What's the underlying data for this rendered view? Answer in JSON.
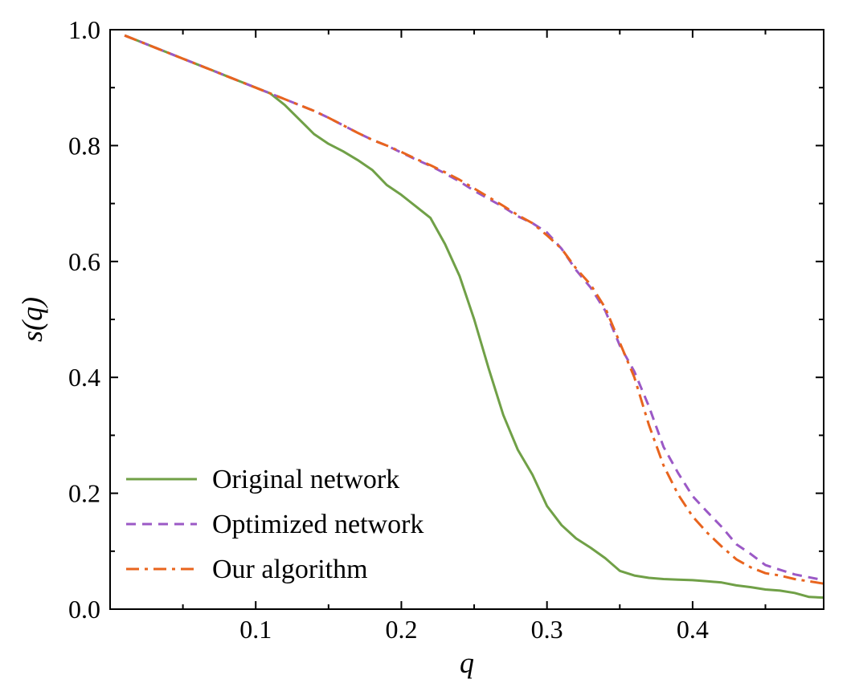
{
  "chart_data": {
    "type": "line",
    "xlabel": "q",
    "ylabel": "s(q)",
    "xlim": [
      0.0,
      0.49
    ],
    "ylim": [
      0.0,
      1.0
    ],
    "xticks": [
      0.1,
      0.2,
      0.3,
      0.4
    ],
    "xtick_labels": [
      "0.1",
      "0.2",
      "0.3",
      "0.4"
    ],
    "yticks": [
      0.0,
      0.2,
      0.4,
      0.6,
      0.8,
      1.0
    ],
    "ytick_labels": [
      "0.0",
      "0.2",
      "0.4",
      "0.6",
      "0.8",
      "1.0"
    ],
    "legend_position": "bottom-left",
    "grid": false,
    "series": [
      {
        "name": "Original network",
        "color": "#70a047",
        "style": "solid",
        "x": [
          0.01,
          0.02,
          0.03,
          0.04,
          0.05,
          0.06,
          0.07,
          0.08,
          0.09,
          0.1,
          0.11,
          0.12,
          0.13,
          0.14,
          0.15,
          0.16,
          0.17,
          0.18,
          0.19,
          0.2,
          0.21,
          0.22,
          0.23,
          0.24,
          0.25,
          0.26,
          0.27,
          0.28,
          0.29,
          0.3,
          0.31,
          0.32,
          0.33,
          0.34,
          0.35,
          0.36,
          0.37,
          0.38,
          0.39,
          0.4,
          0.41,
          0.42,
          0.43,
          0.44,
          0.45,
          0.46,
          0.47,
          0.48,
          0.49
        ],
        "y": [
          0.99,
          0.98,
          0.97,
          0.96,
          0.95,
          0.94,
          0.93,
          0.92,
          0.91,
          0.9,
          0.89,
          0.87,
          0.845,
          0.82,
          0.803,
          0.79,
          0.775,
          0.758,
          0.732,
          0.715,
          0.695,
          0.675,
          0.63,
          0.575,
          0.5,
          0.415,
          0.335,
          0.275,
          0.232,
          0.178,
          0.145,
          0.122,
          0.106,
          0.088,
          0.066,
          0.058,
          0.054,
          0.052,
          0.051,
          0.05,
          0.048,
          0.046,
          0.041,
          0.038,
          0.034,
          0.032,
          0.028,
          0.021,
          0.02
        ]
      },
      {
        "name": "Optimized network",
        "color": "#9b59c6",
        "style": "dashed",
        "x": [
          0.01,
          0.02,
          0.03,
          0.04,
          0.05,
          0.06,
          0.07,
          0.08,
          0.09,
          0.1,
          0.11,
          0.12,
          0.13,
          0.14,
          0.15,
          0.16,
          0.17,
          0.18,
          0.19,
          0.2,
          0.21,
          0.22,
          0.23,
          0.24,
          0.25,
          0.26,
          0.27,
          0.28,
          0.29,
          0.3,
          0.31,
          0.32,
          0.33,
          0.34,
          0.35,
          0.36,
          0.37,
          0.38,
          0.39,
          0.4,
          0.41,
          0.42,
          0.43,
          0.44,
          0.45,
          0.46,
          0.47,
          0.48,
          0.49
        ],
        "y": [
          0.99,
          0.98,
          0.97,
          0.96,
          0.95,
          0.94,
          0.93,
          0.92,
          0.91,
          0.9,
          0.89,
          0.88,
          0.87,
          0.86,
          0.848,
          0.835,
          0.822,
          0.81,
          0.8,
          0.788,
          0.776,
          0.765,
          0.752,
          0.738,
          0.722,
          0.708,
          0.694,
          0.678,
          0.666,
          0.65,
          0.622,
          0.585,
          0.555,
          0.515,
          0.455,
          0.41,
          0.35,
          0.28,
          0.235,
          0.195,
          0.168,
          0.142,
          0.112,
          0.095,
          0.076,
          0.068,
          0.06,
          0.055,
          0.05
        ]
      },
      {
        "name": "Our algorithm",
        "color": "#e8641e",
        "style": "dashdot",
        "x": [
          0.01,
          0.02,
          0.03,
          0.04,
          0.05,
          0.06,
          0.07,
          0.08,
          0.09,
          0.1,
          0.11,
          0.12,
          0.13,
          0.14,
          0.15,
          0.16,
          0.17,
          0.18,
          0.19,
          0.2,
          0.21,
          0.22,
          0.23,
          0.24,
          0.25,
          0.26,
          0.27,
          0.28,
          0.29,
          0.3,
          0.31,
          0.32,
          0.33,
          0.34,
          0.35,
          0.36,
          0.37,
          0.38,
          0.39,
          0.4,
          0.41,
          0.42,
          0.43,
          0.44,
          0.45,
          0.46,
          0.47,
          0.48,
          0.49
        ],
        "y": [
          0.99,
          0.98,
          0.97,
          0.96,
          0.95,
          0.94,
          0.93,
          0.92,
          0.91,
          0.9,
          0.89,
          0.88,
          0.87,
          0.86,
          0.848,
          0.835,
          0.822,
          0.81,
          0.8,
          0.789,
          0.777,
          0.766,
          0.754,
          0.741,
          0.726,
          0.711,
          0.696,
          0.68,
          0.666,
          0.645,
          0.622,
          0.588,
          0.56,
          0.52,
          0.46,
          0.4,
          0.318,
          0.248,
          0.198,
          0.16,
          0.132,
          0.108,
          0.086,
          0.072,
          0.062,
          0.058,
          0.052,
          0.048,
          0.044
        ]
      }
    ]
  }
}
